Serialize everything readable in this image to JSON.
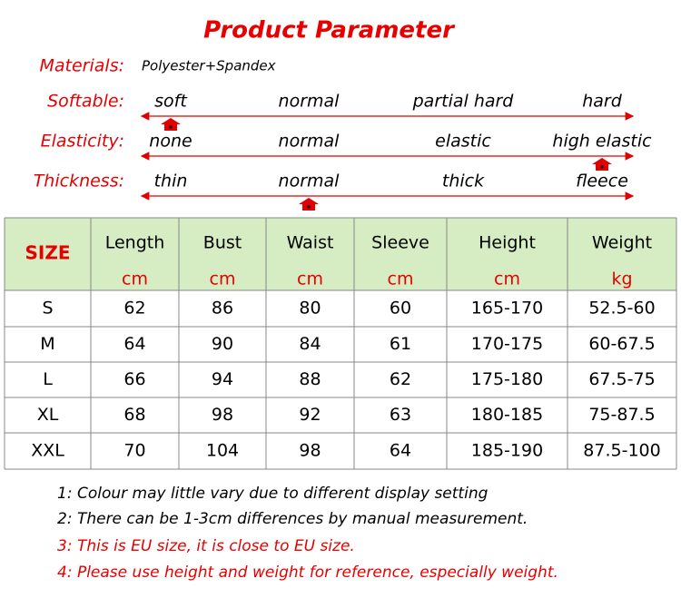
{
  "title": "Product Parameter",
  "materials": {
    "label": "Materials:",
    "value": "Polyester+Spandex"
  },
  "scales": [
    {
      "label": "Softable:",
      "options": [
        "soft",
        "normal",
        "partial hard",
        "hard"
      ],
      "selected": 0
    },
    {
      "label": "Elasticity:",
      "options": [
        "none",
        "normal",
        "elastic",
        "high elastic"
      ],
      "selected": 3
    },
    {
      "label": "Thickness:",
      "options": [
        "thin",
        "normal",
        "thick",
        "fleece"
      ],
      "selected": 1
    }
  ],
  "table": {
    "header": [
      "SIZE",
      "Length",
      "Bust",
      "Waist",
      "Sleeve",
      "Height",
      "Weight"
    ],
    "units": [
      "cm",
      "cm",
      "cm",
      "cm",
      "cm",
      "kg"
    ],
    "rows": [
      [
        "S",
        "62",
        "86",
        "80",
        "60",
        "165-170",
        "52.5-60"
      ],
      [
        "M",
        "64",
        "90",
        "84",
        "61",
        "170-175",
        "60-67.5"
      ],
      [
        "L",
        "66",
        "94",
        "88",
        "62",
        "175-180",
        "67.5-75"
      ],
      [
        "XL",
        "68",
        "98",
        "92",
        "63",
        "180-185",
        "75-87.5"
      ],
      [
        "XXL",
        "70",
        "104",
        "98",
        "64",
        "185-190",
        "87.5-100"
      ]
    ]
  },
  "notes": [
    "1: Colour may little vary due to different display setting",
    "2: There can be 1-3cm differences by manual measurement.",
    "3: This is EU size, it is close to EU size.",
    "4: Please use height and weight for reference, especially weight."
  ]
}
